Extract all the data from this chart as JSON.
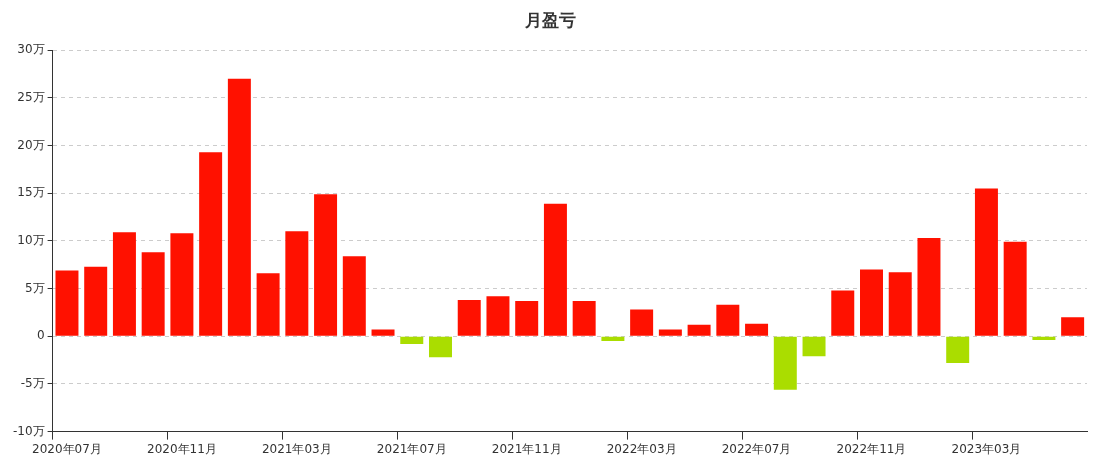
{
  "chart_data": {
    "type": "bar",
    "title": "月盈亏",
    "categories": [
      "2020年07月",
      null,
      null,
      null,
      "2020年11月",
      null,
      null,
      null,
      "2021年03月",
      null,
      null,
      null,
      "2021年07月",
      null,
      null,
      null,
      "2021年11月",
      null,
      null,
      null,
      "2022年03月",
      null,
      null,
      null,
      "2022年07月",
      null,
      null,
      null,
      "2022年11月",
      null,
      null,
      null,
      "2023年03月",
      null,
      null,
      null
    ],
    "values": [
      6.9,
      7.3,
      10.9,
      8.8,
      10.8,
      19.3,
      27.0,
      6.6,
      11.0,
      14.9,
      8.4,
      0.7,
      -0.8,
      -2.2,
      3.8,
      4.2,
      3.7,
      13.9,
      3.7,
      -0.5,
      2.8,
      0.7,
      1.2,
      3.3,
      1.3,
      -5.6,
      -2.1,
      4.8,
      7.0,
      6.7,
      10.3,
      -2.8,
      15.5,
      9.9,
      -0.4,
      2.0
    ],
    "colors": [
      "#ff1100",
      "#ff1100",
      "#ff1100",
      "#ff1100",
      "#ff1100",
      "#ff1100",
      "#ff1100",
      "#ff1100",
      "#ff1100",
      "#ff1100",
      "#ff1100",
      "#ff1100",
      "#aadd00",
      "#aadd00",
      "#ff1100",
      "#ff1100",
      "#ff1100",
      "#ff1100",
      "#ff1100",
      "#aadd00",
      "#ff1100",
      "#ff1100",
      "#ff1100",
      "#ff1100",
      "#ff1100",
      "#aadd00",
      "#aadd00",
      "#ff1100",
      "#ff1100",
      "#ff1100",
      "#ff1100",
      "#aadd00",
      "#ff1100",
      "#ff1100",
      "#aadd00",
      "#ff1100"
    ],
    "ylim": [
      -10,
      30
    ],
    "yticks": [
      {
        "value": -10,
        "label": "-10万"
      },
      {
        "value": -5,
        "label": "-5万"
      },
      {
        "value": 0,
        "label": "0"
      },
      {
        "value": 5,
        "label": "5万"
      },
      {
        "value": 10,
        "label": "10万"
      },
      {
        "value": 15,
        "label": "15万"
      },
      {
        "value": 20,
        "label": "20万"
      },
      {
        "value": 25,
        "label": "25万"
      },
      {
        "value": 30,
        "label": "30万"
      }
    ],
    "grid": "y",
    "legend": false
  }
}
